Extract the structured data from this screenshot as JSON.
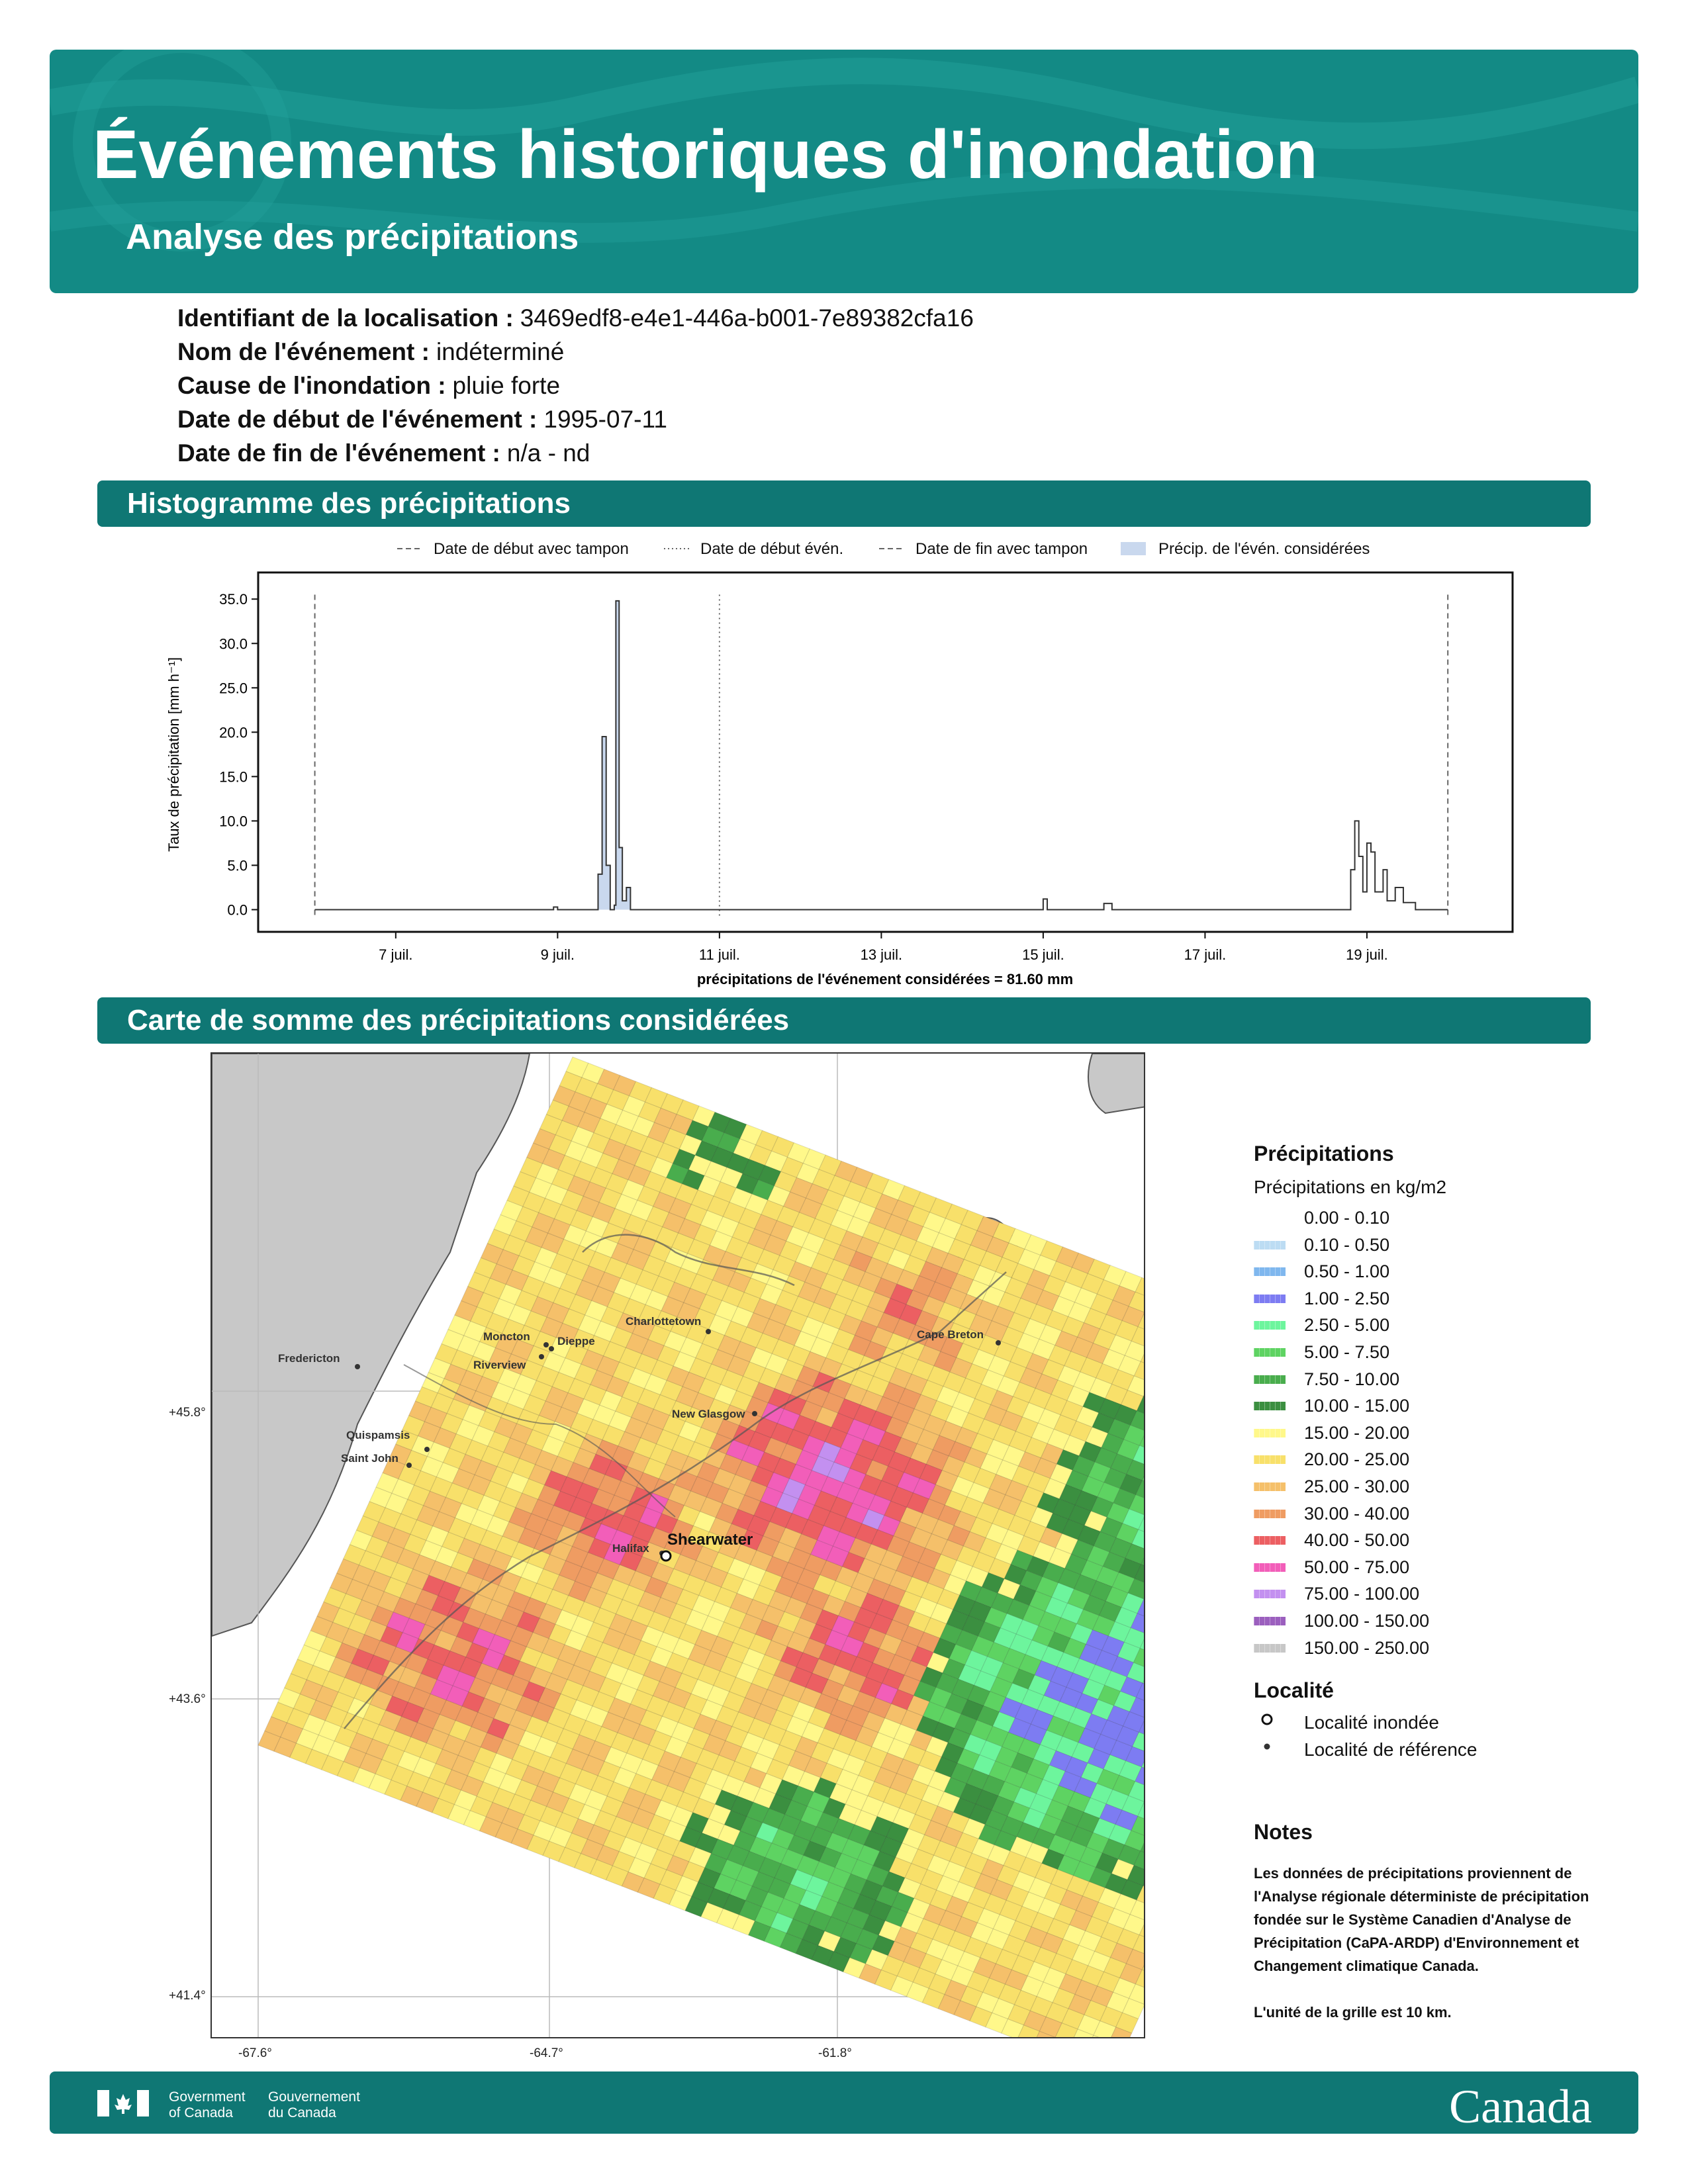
{
  "header": {
    "title": "Événements historiques d'inondation",
    "subtitle": "Analyse des précipitations",
    "colors": {
      "banner": "#138a85",
      "section": "#0f7774"
    }
  },
  "metadata": [
    {
      "label": "Identifiant de la localisation :",
      "value": "3469edf8-e4e1-446a-b001-7e89382cfa16"
    },
    {
      "label": "Nom de l'événement :",
      "value": "indéterminé"
    },
    {
      "label": "Cause de l'inondation :",
      "value": "pluie forte"
    },
    {
      "label": "Date de début de l'événement :",
      "value": "1995-07-11"
    },
    {
      "label": "Date de fin de l'événement :",
      "value": "n/a - nd"
    }
  ],
  "histogram": {
    "section_title": "Histogramme des précipitations",
    "legend": [
      "Date de début avec tampon",
      "Date de début évén.",
      "Date de fin avec tampon",
      "Précip. de l'évén. considérées"
    ],
    "footer_text": "précipitations de l'événement considérées = 81.60 mm"
  },
  "chart_data": {
    "type": "area",
    "ylabel": "Taux de précipitation [mm h⁻¹]",
    "yticks": [
      "0.0",
      "5.0",
      "10.0",
      "15.0",
      "20.0",
      "25.0",
      "30.0",
      "35.0"
    ],
    "ylim": [
      -2.5,
      38
    ],
    "xticks": [
      {
        "day": 7,
        "label": "7 juil."
      },
      {
        "day": 9,
        "label": "9 juil."
      },
      {
        "day": 11,
        "label": "11 juil."
      },
      {
        "day": 13,
        "label": "13 juil."
      },
      {
        "day": 15,
        "label": "15 juil."
      },
      {
        "day": 17,
        "label": "17 juil."
      },
      {
        "day": 19,
        "label": "19 juil."
      }
    ],
    "xlim": [
      5.3,
      20.8
    ],
    "buffer_start": 6.0,
    "event_start": 11.0,
    "buffer_end": 20.0,
    "points": [
      [
        6.0,
        0
      ],
      [
        8.9,
        0
      ],
      [
        8.95,
        0.3
      ],
      [
        9.0,
        0
      ],
      [
        9.45,
        0
      ],
      [
        9.5,
        4
      ],
      [
        9.55,
        19.5
      ],
      [
        9.6,
        5
      ],
      [
        9.65,
        0
      ],
      [
        9.7,
        0.5
      ],
      [
        9.72,
        34.8
      ],
      [
        9.76,
        7
      ],
      [
        9.8,
        1
      ],
      [
        9.85,
        2.5
      ],
      [
        9.9,
        0
      ],
      [
        14.95,
        0
      ],
      [
        15.0,
        1.2
      ],
      [
        15.05,
        0
      ],
      [
        15.7,
        0
      ],
      [
        15.75,
        0.7
      ],
      [
        15.85,
        0
      ],
      [
        18.75,
        0
      ],
      [
        18.8,
        4.5
      ],
      [
        18.85,
        10
      ],
      [
        18.9,
        6
      ],
      [
        18.95,
        2
      ],
      [
        19.0,
        7.5
      ],
      [
        19.05,
        6.5
      ],
      [
        19.1,
        2
      ],
      [
        19.2,
        4.5
      ],
      [
        19.25,
        1
      ],
      [
        19.35,
        2.5
      ],
      [
        19.45,
        0.8
      ],
      [
        19.6,
        0
      ],
      [
        20.0,
        0
      ]
    ]
  },
  "map": {
    "section_title": "Carte de somme des précipitations considérées",
    "x_ticks": [
      "-67.6°",
      "-64.7°",
      "-61.8°"
    ],
    "y_ticks": [
      "+45.8°",
      "+43.6°",
      "+41.4°"
    ],
    "cities": [
      "Charlottetown",
      "Moncton",
      "Dieppe",
      "Riverview",
      "Cape Breton",
      "Fredericton",
      "New Glasgow",
      "Quispamsis",
      "Saint John",
      "Halifax"
    ],
    "flooded_city": "Shearwater"
  },
  "legend": {
    "title": "Précipitations",
    "subtitle": "Précipitations en kg/m2",
    "entries": [
      {
        "range": "0.00 - 0.10",
        "color": "#ffffff"
      },
      {
        "range": "0.10 - 0.50",
        "color": "#bcdcf3"
      },
      {
        "range": "0.50 - 1.00",
        "color": "#7fb7ee"
      },
      {
        "range": "1.00 - 2.50",
        "color": "#7d7cf2"
      },
      {
        "range": "2.50 - 5.00",
        "color": "#6df59d"
      },
      {
        "range": "5.00 - 7.50",
        "color": "#5ed362"
      },
      {
        "range": "7.50 - 10.00",
        "color": "#49ad4d"
      },
      {
        "range": "10.00 - 15.00",
        "color": "#3b8f40"
      },
      {
        "range": "15.00 - 20.00",
        "color": "#fff88a"
      },
      {
        "range": "20.00 - 25.00",
        "color": "#f8e06a"
      },
      {
        "range": "25.00 - 30.00",
        "color": "#f5c06a"
      },
      {
        "range": "30.00 - 40.00",
        "color": "#ef9c62"
      },
      {
        "range": "40.00 - 50.00",
        "color": "#ec5f62"
      },
      {
        "range": "50.00 - 75.00",
        "color": "#f25eb9"
      },
      {
        "range": "75.00 - 100.00",
        "color": "#c390f0"
      },
      {
        "range": "100.00 - 150.00",
        "color": "#9b5fbe"
      },
      {
        "range": "150.00 - 250.00",
        "color": "#c7c7c7"
      }
    ]
  },
  "locality": {
    "title": "Localité",
    "flooded": "Localité inondée",
    "reference": "Localité de référence"
  },
  "notes": {
    "title": "Notes",
    "text": "Les données de précipitations proviennent de l'Analyse régionale déterministe de précipitation fondée sur le Système Canadien d'Analyse de Précipitation (CaPA-ARDP) d'Environnement et Changement climatique Canada.",
    "unit": "L'unité de la grille est 10 km."
  },
  "footer": {
    "gov_en": "Government\nof Canada",
    "gov_fr": "Gouvernement\ndu Canada",
    "wordmark": "Canada"
  }
}
